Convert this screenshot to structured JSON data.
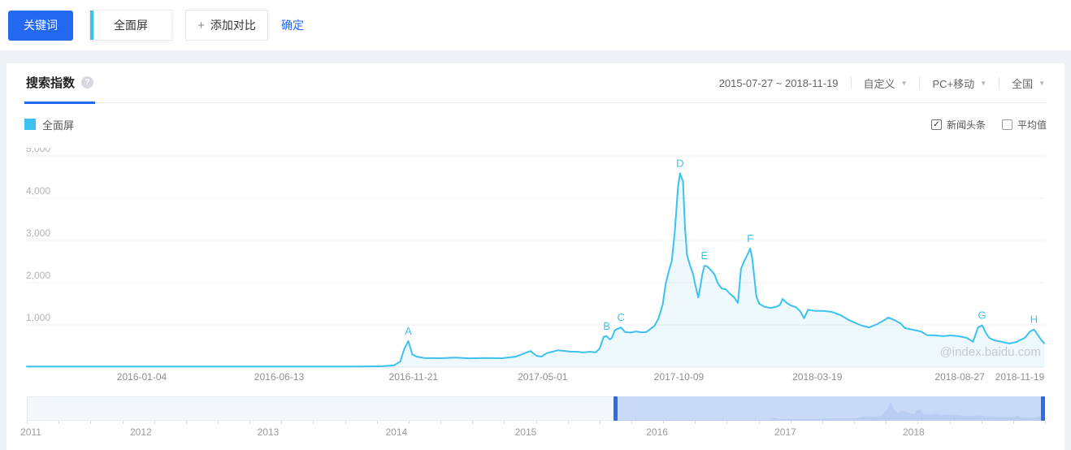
{
  "colors": {
    "accent": "#2468f2",
    "series": "#3ec1f0",
    "series_fill": "rgba(62,193,240,0.09)",
    "slider_selection": "#c9daf8",
    "slider_handle": "#2e6be5",
    "slider_silhouette": "#b9cdf2"
  },
  "topbar": {
    "keyword_button": "关键词",
    "keyword_tab": "全面屏",
    "add_compare_plus": "+",
    "add_compare_button": "添加对比",
    "confirm_link": "确定"
  },
  "panel": {
    "tab": "搜索指数",
    "help_icon": "?",
    "date_range": "2015-07-27 ~ 2018-11-19",
    "range_mode": "自定义",
    "platform": "PC+移动",
    "region": "全国",
    "legend_label": "全面屏",
    "news_checkbox": "新闻头条",
    "news_checked": true,
    "average_checkbox": "平均值",
    "average_checked": false,
    "watermark": "@index.baidu.com"
  },
  "chart_data": {
    "type": "area",
    "title": "搜索指数 - 全面屏",
    "series_name": "全面屏",
    "ylim": [
      0,
      5000
    ],
    "y_ticks": [
      "5,000",
      "4,000",
      "3,000",
      "2,000",
      "1,000"
    ],
    "y_tick_values": [
      5000,
      4000,
      3000,
      2000,
      1000
    ],
    "x_ticks": [
      {
        "label": "2016-01-04",
        "f": 0.113
      },
      {
        "label": "2016-06-13",
        "f": 0.248
      },
      {
        "label": "2016-11-21",
        "f": 0.38
      },
      {
        "label": "2017-05-01",
        "f": 0.507
      },
      {
        "label": "2017-10-09",
        "f": 0.641
      },
      {
        "label": "2018-03-19",
        "f": 0.777
      },
      {
        "label": "2018-08-27",
        "f": 0.917
      },
      {
        "label": "2018-11-19",
        "f": 0.976
      }
    ],
    "markers": [
      {
        "label": "A",
        "f": 0.375,
        "v": 620
      },
      {
        "label": "B",
        "f": 0.57,
        "v": 735
      },
      {
        "label": "C",
        "f": 0.584,
        "v": 940
      },
      {
        "label": "D",
        "f": 0.642,
        "v": 4590
      },
      {
        "label": "E",
        "f": 0.666,
        "v": 2400
      },
      {
        "label": "F",
        "f": 0.711,
        "v": 2810
      },
      {
        "label": "G",
        "f": 0.939,
        "v": 990
      },
      {
        "label": "H",
        "f": 0.99,
        "v": 890
      }
    ],
    "points": [
      [
        0.0,
        15
      ],
      [
        0.054,
        15
      ],
      [
        0.133,
        15
      ],
      [
        0.213,
        15
      ],
      [
        0.293,
        15
      ],
      [
        0.325,
        15
      ],
      [
        0.349,
        22
      ],
      [
        0.361,
        45
      ],
      [
        0.367,
        130
      ],
      [
        0.371,
        430
      ],
      [
        0.375,
        620
      ],
      [
        0.379,
        300
      ],
      [
        0.383,
        250
      ],
      [
        0.391,
        215
      ],
      [
        0.405,
        212
      ],
      [
        0.421,
        225
      ],
      [
        0.435,
        210
      ],
      [
        0.451,
        218
      ],
      [
        0.467,
        212
      ],
      [
        0.481,
        250
      ],
      [
        0.491,
        345
      ],
      [
        0.495,
        380
      ],
      [
        0.501,
        268
      ],
      [
        0.506,
        250
      ],
      [
        0.511,
        330
      ],
      [
        0.517,
        368
      ],
      [
        0.522,
        400
      ],
      [
        0.528,
        385
      ],
      [
        0.534,
        368
      ],
      [
        0.541,
        366
      ],
      [
        0.547,
        348
      ],
      [
        0.554,
        366
      ],
      [
        0.559,
        348
      ],
      [
        0.563,
        440
      ],
      [
        0.567,
        720
      ],
      [
        0.57,
        735
      ],
      [
        0.573,
        658
      ],
      [
        0.575,
        690
      ],
      [
        0.578,
        878
      ],
      [
        0.584,
        940
      ],
      [
        0.588,
        832
      ],
      [
        0.593,
        820
      ],
      [
        0.599,
        845
      ],
      [
        0.604,
        825
      ],
      [
        0.609,
        832
      ],
      [
        0.613,
        905
      ],
      [
        0.617,
        980
      ],
      [
        0.621,
        1160
      ],
      [
        0.625,
        1480
      ],
      [
        0.628,
        1980
      ],
      [
        0.631,
        2270
      ],
      [
        0.634,
        2520
      ],
      [
        0.637,
        3230
      ],
      [
        0.64,
        4250
      ],
      [
        0.642,
        4590
      ],
      [
        0.645,
        4400
      ],
      [
        0.647,
        3300
      ],
      [
        0.649,
        2650
      ],
      [
        0.652,
        2400
      ],
      [
        0.655,
        2190
      ],
      [
        0.657,
        1950
      ],
      [
        0.66,
        1650
      ],
      [
        0.662,
        1900
      ],
      [
        0.664,
        2200
      ],
      [
        0.666,
        2400
      ],
      [
        0.669,
        2380
      ],
      [
        0.673,
        2280
      ],
      [
        0.676,
        2190
      ],
      [
        0.679,
        2000
      ],
      [
        0.683,
        1860
      ],
      [
        0.687,
        1845
      ],
      [
        0.691,
        1740
      ],
      [
        0.695,
        1660
      ],
      [
        0.699,
        1520
      ],
      [
        0.702,
        2330
      ],
      [
        0.705,
        2500
      ],
      [
        0.709,
        2700
      ],
      [
        0.711,
        2810
      ],
      [
        0.713,
        2580
      ],
      [
        0.715,
        2140
      ],
      [
        0.717,
        1680
      ],
      [
        0.72,
        1500
      ],
      [
        0.725,
        1430
      ],
      [
        0.731,
        1400
      ],
      [
        0.736,
        1425
      ],
      [
        0.74,
        1465
      ],
      [
        0.743,
        1615
      ],
      [
        0.747,
        1520
      ],
      [
        0.751,
        1460
      ],
      [
        0.756,
        1420
      ],
      [
        0.76,
        1330
      ],
      [
        0.764,
        1160
      ],
      [
        0.768,
        1360
      ],
      [
        0.775,
        1330
      ],
      [
        0.783,
        1330
      ],
      [
        0.791,
        1310
      ],
      [
        0.8,
        1230
      ],
      [
        0.808,
        1115
      ],
      [
        0.815,
        1040
      ],
      [
        0.821,
        980
      ],
      [
        0.828,
        940
      ],
      [
        0.836,
        1020
      ],
      [
        0.843,
        1115
      ],
      [
        0.847,
        1175
      ],
      [
        0.853,
        1110
      ],
      [
        0.859,
        1035
      ],
      [
        0.863,
        925
      ],
      [
        0.871,
        885
      ],
      [
        0.879,
        845
      ],
      [
        0.885,
        755
      ],
      [
        0.893,
        752
      ],
      [
        0.901,
        732
      ],
      [
        0.908,
        752
      ],
      [
        0.916,
        732
      ],
      [
        0.924,
        692
      ],
      [
        0.93,
        600
      ],
      [
        0.935,
        940
      ],
      [
        0.939,
        990
      ],
      [
        0.943,
        800
      ],
      [
        0.946,
        692
      ],
      [
        0.951,
        635
      ],
      [
        0.959,
        596
      ],
      [
        0.966,
        560
      ],
      [
        0.973,
        598
      ],
      [
        0.981,
        695
      ],
      [
        0.986,
        845
      ],
      [
        0.99,
        890
      ],
      [
        0.993,
        790
      ],
      [
        0.997,
        650
      ],
      [
        1.0,
        565
      ]
    ]
  },
  "slider": {
    "selection": {
      "start": 0.578,
      "end": 1.0
    },
    "years": [
      {
        "label": "2011",
        "f": 0.004
      },
      {
        "label": "2012",
        "f": 0.112
      },
      {
        "label": "2013",
        "f": 0.237
      },
      {
        "label": "2014",
        "f": 0.363
      },
      {
        "label": "2015",
        "f": 0.49
      },
      {
        "label": "2016",
        "f": 0.619
      },
      {
        "label": "2017",
        "f": 0.745
      },
      {
        "label": "2018",
        "f": 0.871
      }
    ],
    "tick_count": 32
  }
}
